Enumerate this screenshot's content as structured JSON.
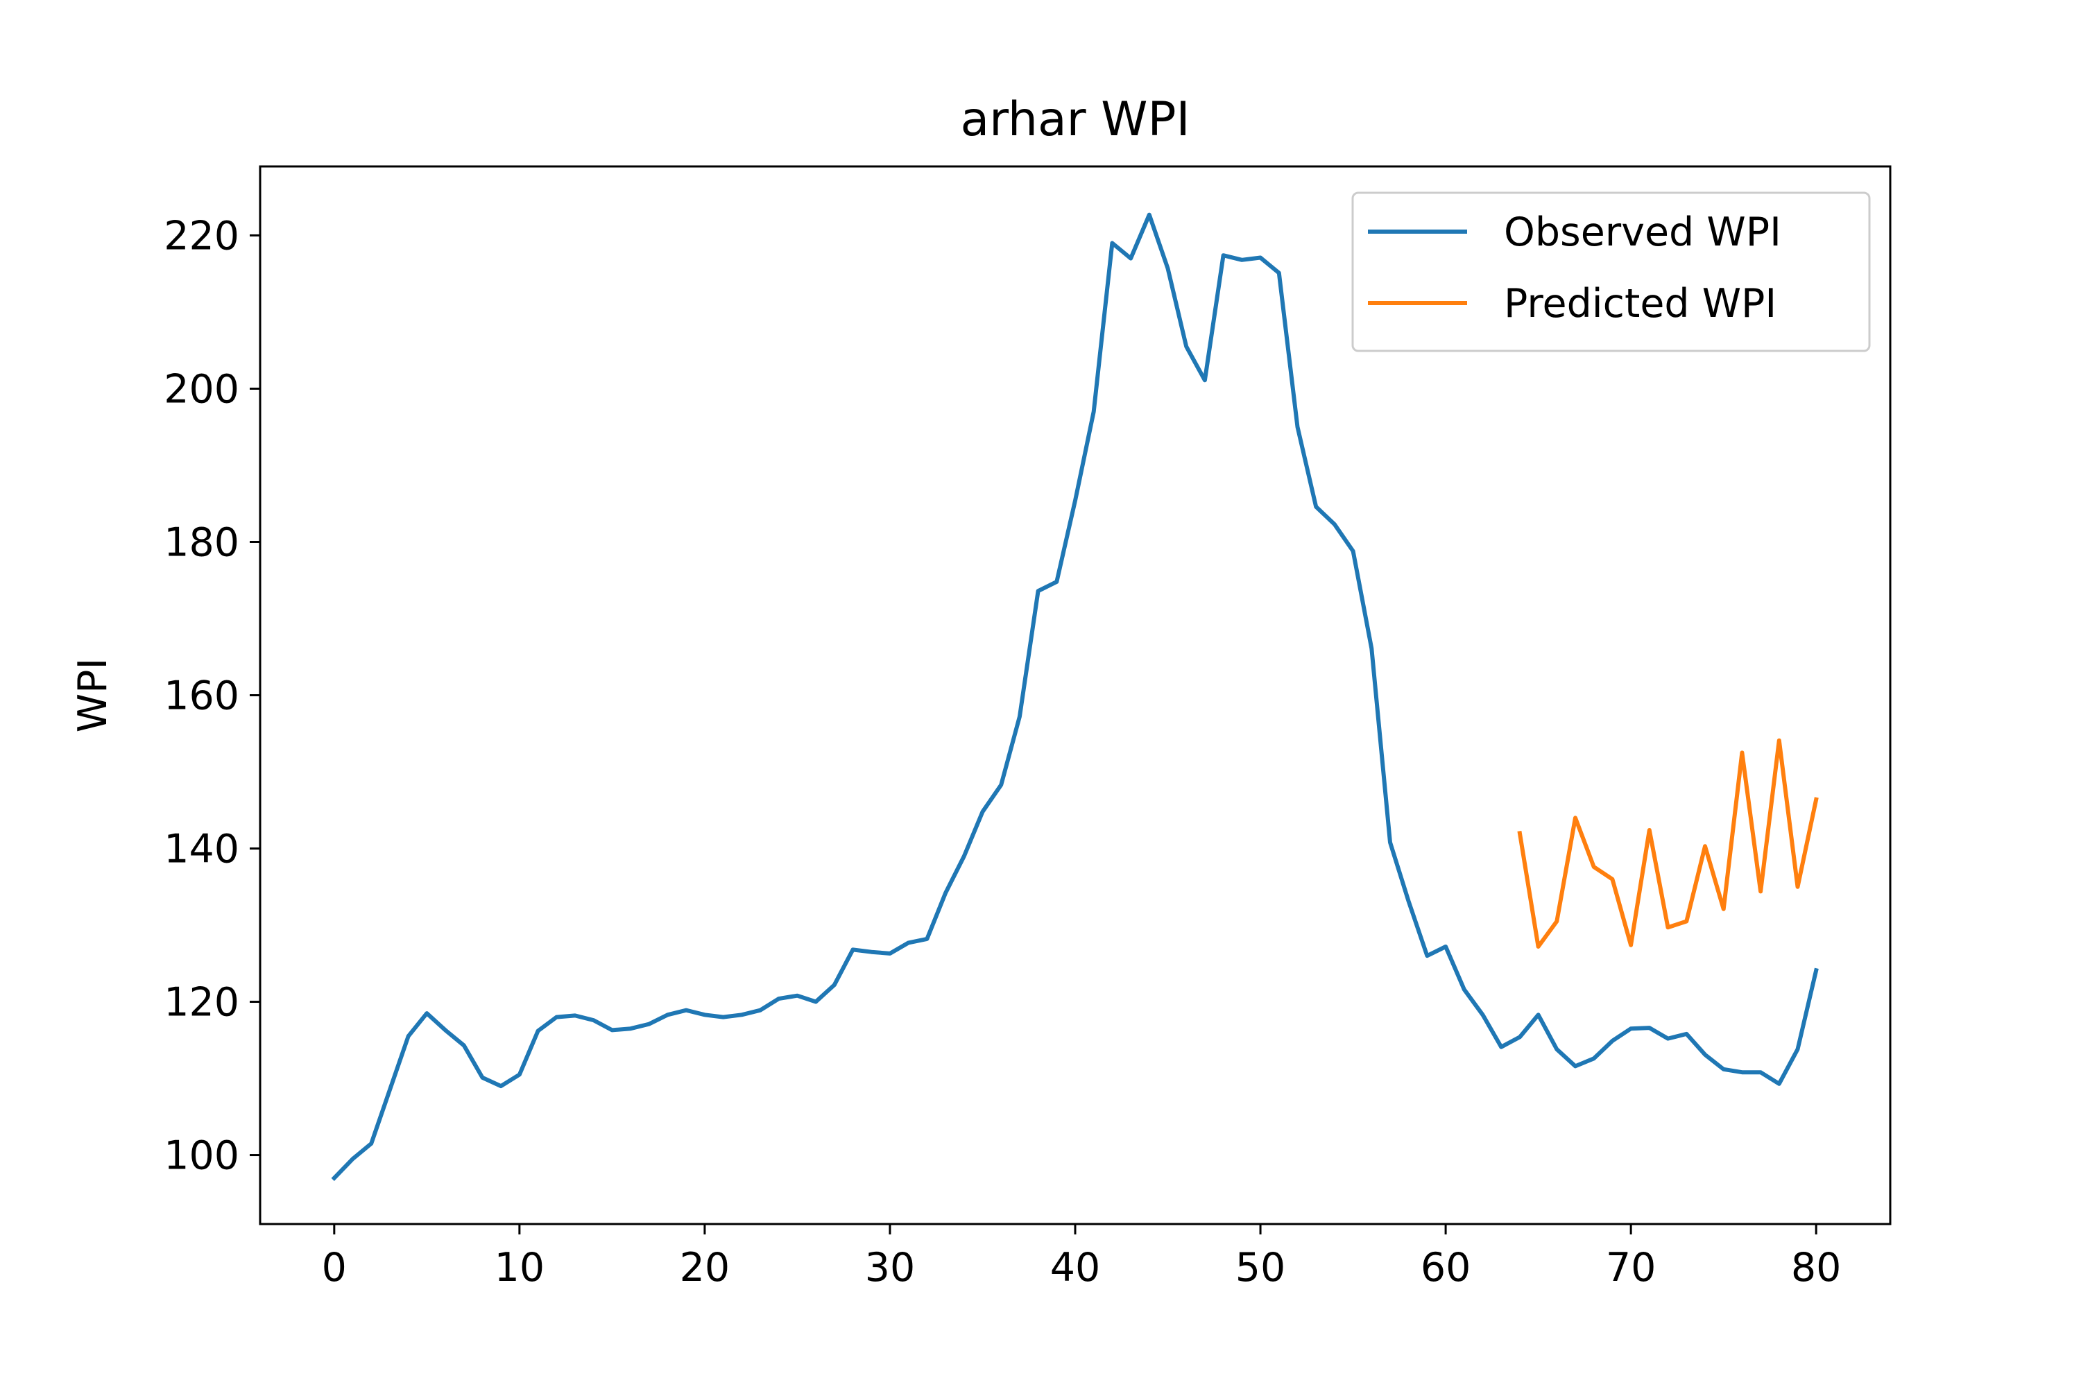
{
  "chart_data": {
    "type": "line",
    "title": "arhar WPI",
    "xlabel": "",
    "ylabel": "WPI",
    "xlim": [
      -4,
      84
    ],
    "ylim": [
      91,
      229
    ],
    "xticks": [
      0,
      10,
      20,
      30,
      40,
      50,
      60,
      70,
      80
    ],
    "yticks": [
      100,
      120,
      140,
      160,
      180,
      200,
      220
    ],
    "grid": false,
    "legend_position": "upper right",
    "series": [
      {
        "name": "Observed WPI",
        "color": "#1f77b4",
        "x": [
          0,
          1,
          2,
          3,
          4,
          5,
          6,
          7,
          8,
          9,
          10,
          11,
          12,
          13,
          14,
          15,
          16,
          17,
          18,
          19,
          20,
          21,
          22,
          23,
          24,
          25,
          26,
          27,
          28,
          29,
          30,
          31,
          32,
          33,
          34,
          35,
          36,
          37,
          38,
          39,
          40,
          41,
          42,
          43,
          44,
          45,
          46,
          47,
          48,
          49,
          50,
          51,
          52,
          53,
          54,
          55,
          56,
          57,
          58,
          59,
          60,
          61,
          62,
          63,
          64,
          65,
          66,
          67,
          68,
          69,
          70,
          71,
          72,
          73,
          74,
          75,
          76,
          77,
          78,
          79,
          80
        ],
        "y": [
          97,
          99.5,
          101.5,
          108.5,
          115.5,
          118.5,
          116.3,
          114.3,
          110.1,
          109,
          110.5,
          116.2,
          118,
          118.2,
          117.6,
          116.3,
          116.5,
          117.1,
          118.3,
          118.9,
          118.3,
          118,
          118.3,
          118.9,
          120.4,
          120.8,
          120,
          122.2,
          126.8,
          126.5,
          126.3,
          127.7,
          128.2,
          134.2,
          139,
          144.8,
          148.3,
          157.2,
          173.6,
          174.8,
          185.4,
          197,
          219,
          217,
          222.7,
          215.7,
          205.5,
          201.1,
          217.4,
          216.8,
          217.1,
          215.1,
          195,
          184.6,
          182.3,
          178.8,
          166.1,
          140.8,
          133.1,
          126,
          127.2,
          121.6,
          118.3,
          114.1,
          115.4,
          118.3,
          113.8,
          111.6,
          112.6,
          114.9,
          116.5,
          116.6,
          115.2,
          115.8,
          113.1,
          111.2,
          110.8,
          110.8,
          109.3,
          113.8,
          124.1
        ]
      },
      {
        "name": "Predicted WPI",
        "color": "#ff7f0e",
        "x": [
          64,
          65,
          66,
          67,
          68,
          69,
          70,
          71,
          72,
          73,
          74,
          75,
          76,
          77,
          78,
          79,
          80
        ],
        "y": [
          142,
          127.2,
          130.5,
          144,
          137.6,
          136,
          127.4,
          142.4,
          129.7,
          130.5,
          140.3,
          132.1,
          152.5,
          134.4,
          154.1,
          135,
          146.4
        ]
      }
    ]
  }
}
